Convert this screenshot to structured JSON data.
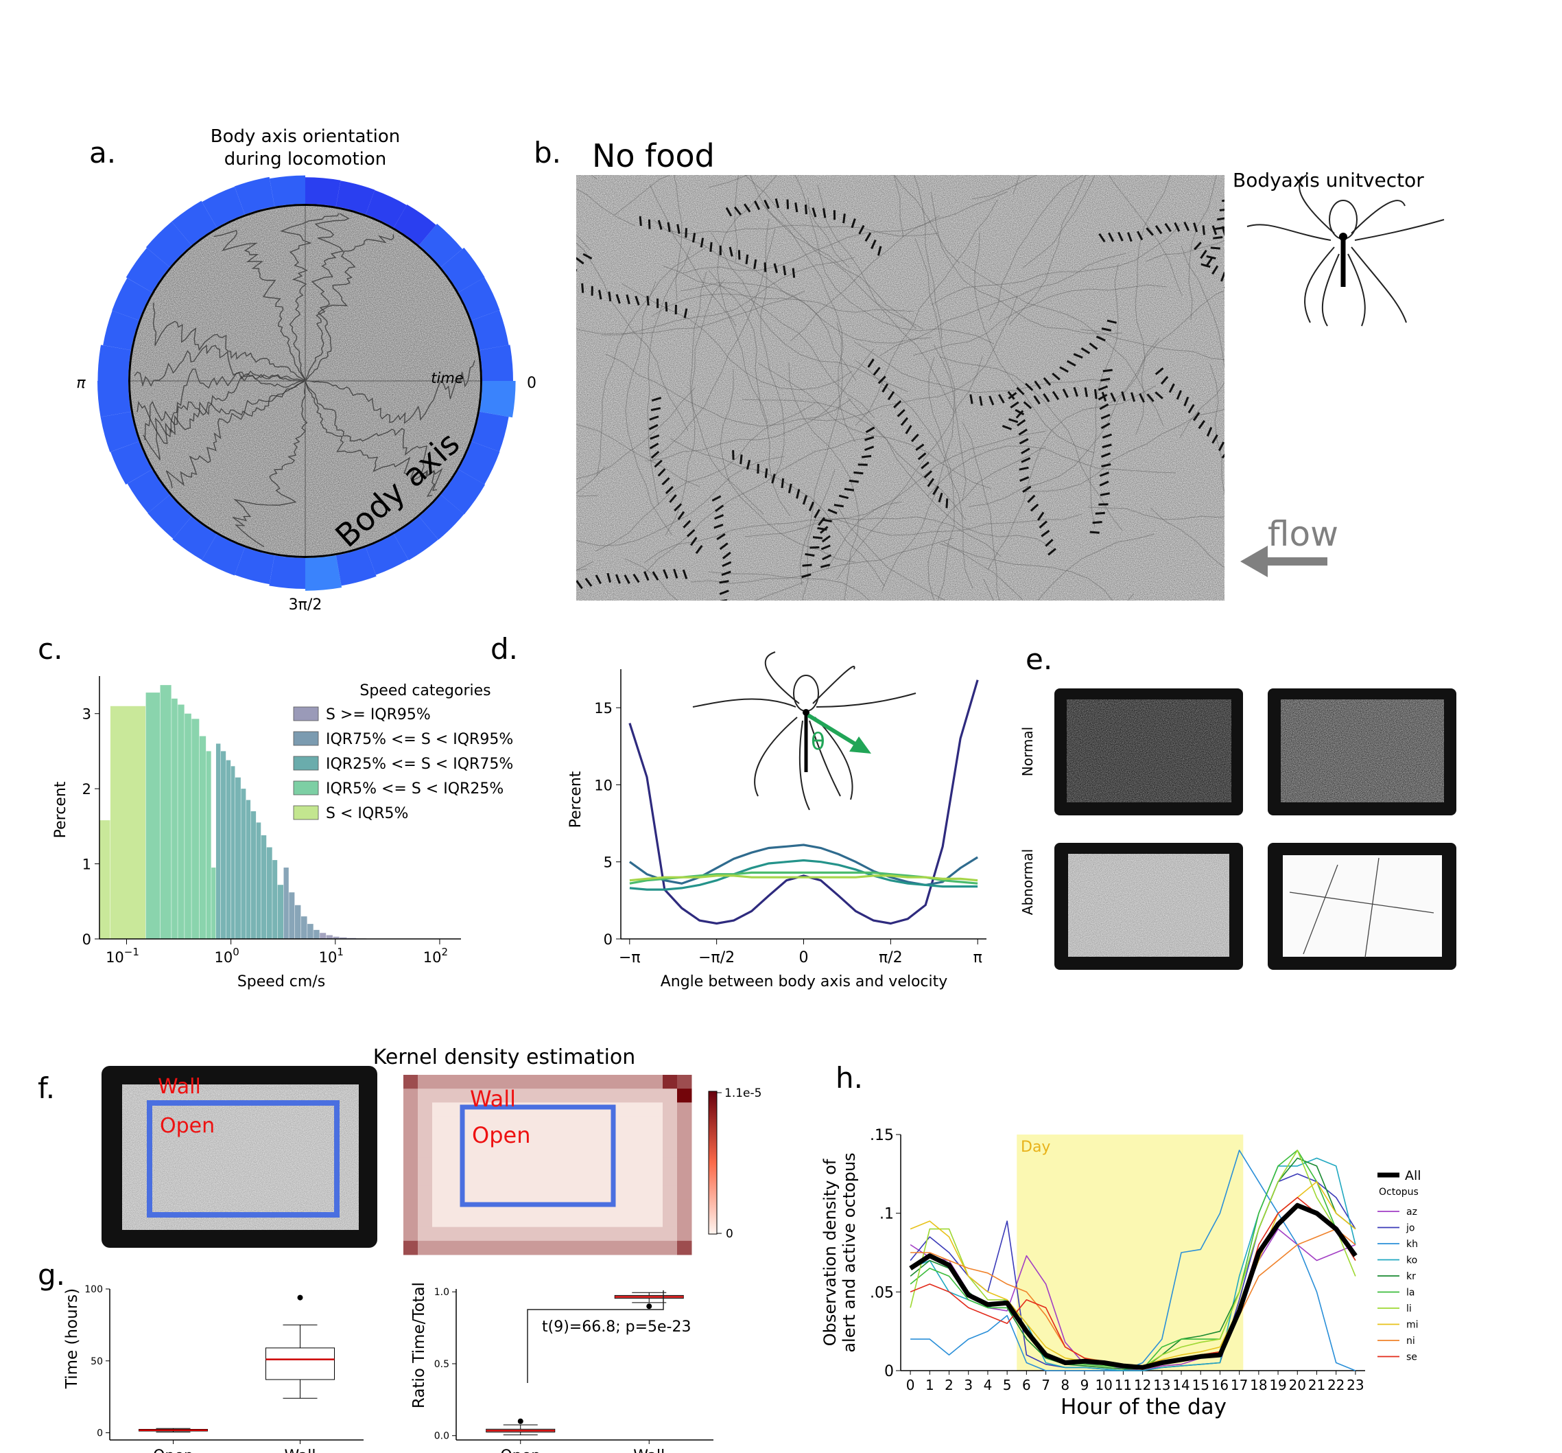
{
  "panel_labels": {
    "a": "a.",
    "b": "b.",
    "c": "c.",
    "d": "d.",
    "e": "e.",
    "f": "f.",
    "g": "g.",
    "h": "h."
  },
  "chart_data": [
    {
      "panel": "a",
      "type": "polar_bar",
      "title": "Body axis orientation during locomotion",
      "angle_labels": {
        "left": "π",
        "right": "0",
        "bottom": "3π/2"
      },
      "inner_labels": {
        "time": "time",
        "axis": "Body axis"
      },
      "bin_radii": [
        1.0,
        0.96,
        0.97,
        0.98,
        0.91,
        0.86,
        0.84,
        0.85,
        0.86,
        0.92,
        0.97,
        0.96,
        1.0,
        1.0,
        0.97,
        0.93,
        0.92,
        0.99,
        1.0,
        1.0,
        0.98,
        0.92,
        0.93,
        0.96,
        0.97,
        0.95,
        1.0,
        1.06,
        1.0,
        0.95,
        0.97,
        0.98,
        0.99,
        0.97,
        0.96,
        1.08
      ],
      "colors": {
        "light": "#3a83fc",
        "mid": "#2f5ff8",
        "dark": "#2a3ff0"
      }
    },
    {
      "panel": "b",
      "type": "trajectory_map",
      "title": "No food",
      "inset_label": "Bodyaxis unitvector",
      "flow_label": "flow"
    },
    {
      "panel": "c",
      "type": "histogram",
      "xlabel": "Speed cm/s",
      "ylabel": "Percent",
      "xscale": "log",
      "xlim": [
        0.055,
        160
      ],
      "ylim": [
        0,
        3.5
      ],
      "xticks": [
        {
          "v": 0.1,
          "b": "10",
          "e": "−1"
        },
        {
          "v": 1,
          "b": "10",
          "e": "0"
        },
        {
          "v": 10,
          "b": "10",
          "e": "1"
        },
        {
          "v": 100,
          "b": "10",
          "e": "2"
        }
      ],
      "yticks": [
        0,
        1,
        2,
        3
      ],
      "legend_title": "Speed categories",
      "legend": [
        {
          "label": "S >= IQR95%",
          "color": "#9a9ab8"
        },
        {
          "label": "IQR75% <= S < IQR95%",
          "color": "#7b9bb0"
        },
        {
          "label": "IQR25% <= S < IQR75%",
          "color": "#6aacac"
        },
        {
          "label": "IQR5% <= S < IQR25%",
          "color": "#7dcfa4"
        },
        {
          "label": "S < IQR5%",
          "color": "#c3e68f"
        }
      ],
      "series": [
        {
          "name": "S < IQR5%",
          "color": "#c3e68f",
          "bins": [
            [
              0.055,
              0.07,
              1.58
            ],
            [
              0.07,
              0.153,
              3.1
            ]
          ]
        },
        {
          "name": "IQR5% <= S < IQR25%",
          "color": "#7dcfa4",
          "bins": [
            [
              0.153,
              0.21,
              3.28
            ],
            [
              0.21,
              0.27,
              3.38
            ],
            [
              0.27,
              0.31,
              3.2
            ],
            [
              0.31,
              0.36,
              3.12
            ],
            [
              0.36,
              0.42,
              3.0
            ],
            [
              0.42,
              0.5,
              2.93
            ],
            [
              0.5,
              0.58,
              2.7
            ],
            [
              0.58,
              0.65,
              2.5
            ],
            [
              0.65,
              0.72,
              0.95
            ]
          ]
        },
        {
          "name": "IQR25% <= S < IQR75%",
          "color": "#6aacac",
          "bins": [
            [
              0.72,
              0.8,
              2.6
            ],
            [
              0.8,
              0.9,
              2.5
            ],
            [
              0.9,
              1.0,
              2.38
            ],
            [
              1.0,
              1.1,
              2.3
            ],
            [
              1.1,
              1.25,
              2.15
            ],
            [
              1.25,
              1.4,
              2.0
            ],
            [
              1.4,
              1.55,
              1.85
            ],
            [
              1.55,
              1.75,
              1.7
            ],
            [
              1.75,
              1.95,
              1.55
            ],
            [
              1.95,
              2.2,
              1.38
            ],
            [
              2.2,
              2.5,
              1.22
            ],
            [
              2.5,
              2.8,
              1.05
            ],
            [
              2.8,
              3.2,
              0.72
            ]
          ]
        },
        {
          "name": "IQR75% <= S < IQR95%",
          "color": "#7b9bb0",
          "bins": [
            [
              3.2,
              3.6,
              0.95
            ],
            [
              3.6,
              4.1,
              0.62
            ],
            [
              4.1,
              4.7,
              0.45
            ],
            [
              4.7,
              5.4,
              0.3
            ],
            [
              5.4,
              6.2,
              0.2
            ],
            [
              6.2,
              7.1,
              0.12
            ]
          ]
        },
        {
          "name": "S >= IQR95%",
          "color": "#9a9ab8",
          "bins": [
            [
              7.1,
              8.2,
              0.08
            ],
            [
              8.2,
              9.5,
              0.05
            ],
            [
              9.5,
              11,
              0.03
            ],
            [
              11,
              13,
              0.02
            ],
            [
              13,
              16,
              0.012
            ],
            [
              16,
              20,
              0.007
            ]
          ]
        }
      ]
    },
    {
      "panel": "d",
      "type": "line",
      "xlabel": "Angle between body axis and velocity",
      "ylabel": "Percent",
      "xlim": [
        -3.3,
        3.3
      ],
      "ylim": [
        0,
        17.5
      ],
      "xticks": [
        {
          "v": -3.14159,
          "t": "−π"
        },
        {
          "v": -1.5708,
          "t": "−π/2"
        },
        {
          "v": 0,
          "t": "0"
        },
        {
          "v": 1.5708,
          "t": "π/2"
        },
        {
          "v": 3.14159,
          "t": "π"
        }
      ],
      "yticks": [
        0,
        5,
        10,
        15
      ],
      "inset_symbol": "θ",
      "x": [
        -3.14,
        -2.83,
        -2.51,
        -2.2,
        -1.88,
        -1.57,
        -1.26,
        -0.94,
        -0.63,
        -0.31,
        0,
        0.31,
        0.63,
        0.94,
        1.26,
        1.57,
        1.88,
        2.2,
        2.51,
        2.83,
        3.14
      ],
      "series": [
        {
          "name": "S >= IQR95%",
          "color": "#2e2a7e",
          "values": [
            14,
            10.5,
            3.2,
            2.0,
            1.2,
            1.0,
            1.2,
            1.8,
            2.8,
            3.8,
            4.1,
            3.8,
            2.8,
            1.8,
            1.2,
            1.0,
            1.3,
            2.2,
            6.0,
            13.0,
            16.8
          ]
        },
        {
          "name": "IQR75% <= S < IQR95%",
          "color": "#2f6b8e",
          "values": [
            5.0,
            4.2,
            3.8,
            3.6,
            4.0,
            4.6,
            5.2,
            5.6,
            5.9,
            6.0,
            6.1,
            5.9,
            5.5,
            5.0,
            4.4,
            4.0,
            3.7,
            3.5,
            3.7,
            4.6,
            5.3
          ]
        },
        {
          "name": "IQR25% <= S < IQR75%",
          "color": "#24938a",
          "values": [
            3.3,
            3.2,
            3.2,
            3.3,
            3.5,
            3.8,
            4.2,
            4.6,
            4.9,
            5.0,
            5.1,
            5.0,
            4.8,
            4.5,
            4.1,
            3.8,
            3.6,
            3.5,
            3.4,
            3.4,
            3.4
          ]
        },
        {
          "name": "IQR5% <= S < IQR25%",
          "color": "#4cbb6d",
          "values": [
            3.6,
            3.8,
            3.9,
            4.0,
            4.1,
            4.2,
            4.2,
            4.3,
            4.3,
            4.3,
            4.3,
            4.3,
            4.3,
            4.3,
            4.3,
            4.2,
            4.1,
            4.0,
            3.8,
            3.7,
            3.6
          ]
        },
        {
          "name": "S < IQR5%",
          "color": "#a6d54a",
          "values": [
            3.8,
            3.9,
            4.0,
            4.0,
            4.0,
            4.1,
            4.1,
            4.0,
            4.0,
            4.0,
            4.0,
            4.0,
            4.0,
            4.0,
            4.1,
            4.1,
            4.0,
            4.0,
            3.9,
            3.9,
            3.8
          ]
        }
      ]
    },
    {
      "panel": "e",
      "type": "heatmap_images",
      "row_labels": [
        "Normal",
        "Abnormal"
      ]
    },
    {
      "panel": "f",
      "type": "heatmap",
      "title": "Kernel density estimation",
      "region_labels": {
        "wall": "Wall",
        "open": "Open"
      },
      "colorbar": {
        "max": "1.1e-5",
        "min": "0"
      }
    },
    {
      "panel": "g-left",
      "type": "box",
      "ylabel": "Time (hours)",
      "categories": [
        "Open",
        "Wall"
      ],
      "ylim": [
        -5,
        100
      ],
      "yticks": [
        0,
        50,
        100
      ],
      "boxes": [
        {
          "min": 0.5,
          "q1": 1.2,
          "median": 1.8,
          "q3": 2.4,
          "max": 3.0,
          "outliers": []
        },
        {
          "min": 24,
          "q1": 37,
          "median": 51,
          "q3": 59,
          "max": 75,
          "outliers": [
            94
          ]
        }
      ]
    },
    {
      "panel": "g-right",
      "type": "box",
      "ylabel": "Ratio Time/Total",
      "categories": [
        "Open",
        "Wall"
      ],
      "ylim": [
        -0.03,
        1.02
      ],
      "yticks": [
        {
          "v": 0,
          "t": "0.0"
        },
        {
          "v": 0.5,
          "t": "0.5"
        },
        {
          "v": 1,
          "t": "1.0"
        }
      ],
      "boxes": [
        {
          "min": 0.005,
          "q1": 0.025,
          "median": 0.035,
          "q3": 0.045,
          "max": 0.075,
          "outliers": [
            0.1
          ]
        },
        {
          "min": 0.925,
          "q1": 0.955,
          "median": 0.965,
          "q3": 0.975,
          "max": 0.995,
          "outliers": [
            0.9
          ]
        }
      ],
      "annotation": "t(9)=66.8; p=5e-23"
    },
    {
      "panel": "h",
      "type": "line",
      "xlabel": "Hour of the day",
      "ylabel": "Observation density of alert and active octopus",
      "xlim": [
        -0.5,
        23.5
      ],
      "ylim": [
        0,
        0.15
      ],
      "yticks": [
        {
          "v": 0,
          "t": "0"
        },
        {
          "v": 0.05,
          "t": ".05"
        },
        {
          "v": 0.1,
          "t": ".1"
        },
        {
          "v": 0.15,
          "t": ".15"
        }
      ],
      "xticks": [
        0,
        1,
        2,
        3,
        4,
        5,
        6,
        7,
        8,
        9,
        10,
        11,
        12,
        13,
        14,
        15,
        16,
        17,
        18,
        19,
        20,
        21,
        22,
        23
      ],
      "day_span": [
        5.5,
        17.2
      ],
      "day_label": "Day",
      "legend_title": "Octopus",
      "series": [
        {
          "name": "All",
          "color": "#000000",
          "width": 7,
          "values": [
            0.065,
            0.073,
            0.067,
            0.048,
            0.042,
            0.043,
            0.025,
            0.01,
            0.005,
            0.006,
            0.005,
            0.003,
            0.002,
            0.005,
            0.007,
            0.009,
            0.01,
            0.038,
            0.075,
            0.093,
            0.105,
            0.1,
            0.09,
            0.073
          ]
        },
        {
          "name": "az",
          "color": "#a23ec4",
          "width": 1.6,
          "values": [
            0.08,
            0.072,
            0.07,
            0.05,
            0.04,
            0.038,
            0.073,
            0.055,
            0.018,
            0.004,
            0.004,
            0.001,
            0,
            0.003,
            0.004,
            0.008,
            0.01,
            0.04,
            0.07,
            0.09,
            0.08,
            0.07,
            0.075,
            0.08
          ]
        },
        {
          "name": "jo",
          "color": "#3a3ab8",
          "width": 1.6,
          "values": [
            0.07,
            0.085,
            0.075,
            0.06,
            0.05,
            0.095,
            0.01,
            0.004,
            0.002,
            0.002,
            0.001,
            0,
            0,
            0.002,
            0.003,
            0.004,
            0.005,
            0.045,
            0.09,
            0.12,
            0.125,
            0.12,
            0.11,
            0.09
          ]
        },
        {
          "name": "kh",
          "color": "#2a8fd8",
          "width": 1.6,
          "values": [
            0.02,
            0.02,
            0.01,
            0.02,
            0.025,
            0.035,
            0.005,
            0.0,
            0.0,
            0.0,
            0.0,
            0.0,
            0.005,
            0.02,
            0.075,
            0.077,
            0.1,
            0.14,
            0.12,
            0.1,
            0.08,
            0.05,
            0.005,
            0.0
          ]
        },
        {
          "name": "ko",
          "color": "#20a8c0",
          "width": 1.6,
          "values": [
            0.065,
            0.07,
            0.05,
            0.045,
            0.04,
            0.045,
            0.03,
            0.005,
            0.002,
            0.002,
            0.001,
            0,
            0,
            0.002,
            0.003,
            0.004,
            0.005,
            0.06,
            0.1,
            0.13,
            0.13,
            0.135,
            0.13,
            0.08
          ]
        },
        {
          "name": "kr",
          "color": "#1a8a30",
          "width": 1.6,
          "values": [
            0.06,
            0.07,
            0.065,
            0.05,
            0.04,
            0.04,
            0.02,
            0.008,
            0.004,
            0.003,
            0.002,
            0.001,
            0.001,
            0.01,
            0.02,
            0.022,
            0.025,
            0.05,
            0.09,
            0.12,
            0.135,
            0.13,
            0.1,
            0.09
          ]
        },
        {
          "name": "la",
          "color": "#3cbc3c",
          "width": 1.6,
          "values": [
            0.055,
            0.065,
            0.06,
            0.045,
            0.04,
            0.04,
            0.025,
            0.01,
            0.005,
            0.004,
            0.003,
            0.002,
            0.001,
            0.015,
            0.02,
            0.02,
            0.02,
            0.05,
            0.1,
            0.13,
            0.14,
            0.12,
            0.09,
            0.07
          ]
        },
        {
          "name": "li",
          "color": "#9ed832",
          "width": 1.6,
          "values": [
            0.04,
            0.09,
            0.09,
            0.06,
            0.045,
            0.045,
            0.025,
            0.01,
            0.006,
            0.005,
            0.004,
            0.002,
            0.002,
            0.01,
            0.015,
            0.018,
            0.02,
            0.05,
            0.09,
            0.12,
            0.14,
            0.11,
            0.09,
            0.06
          ]
        },
        {
          "name": "mi",
          "color": "#e8c21a",
          "width": 1.6,
          "values": [
            0.09,
            0.095,
            0.085,
            0.06,
            0.05,
            0.045,
            0.03,
            0.015,
            0.008,
            0.006,
            0.005,
            0.003,
            0.003,
            0.007,
            0.01,
            0.012,
            0.015,
            0.04,
            0.07,
            0.1,
            0.11,
            0.12,
            0.1,
            0.09
          ]
        },
        {
          "name": "ni",
          "color": "#f0822a",
          "width": 1.6,
          "values": [
            0.075,
            0.075,
            0.07,
            0.065,
            0.062,
            0.055,
            0.05,
            0.035,
            0.015,
            0.008,
            0.006,
            0.004,
            0.003,
            0.006,
            0.008,
            0.01,
            0.012,
            0.035,
            0.06,
            0.07,
            0.08,
            0.085,
            0.09,
            0.08
          ]
        },
        {
          "name": "se",
          "color": "#e22a1a",
          "width": 1.6,
          "values": [
            0.05,
            0.055,
            0.05,
            0.04,
            0.035,
            0.03,
            0.045,
            0.04,
            0.015,
            0.008,
            0.005,
            0.003,
            0.003,
            0.006,
            0.008,
            0.01,
            0.012,
            0.04,
            0.08,
            0.1,
            0.11,
            0.1,
            0.09,
            0.07
          ]
        }
      ]
    }
  ]
}
